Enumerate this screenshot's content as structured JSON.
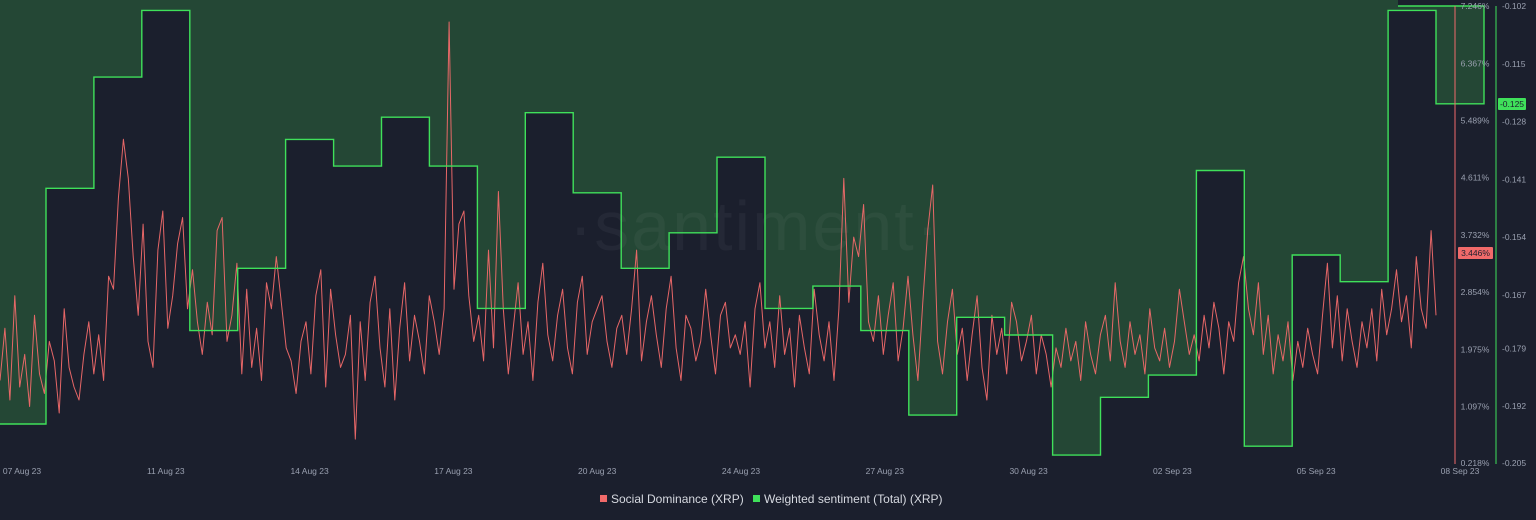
{
  "watermark": "·santiment·",
  "chart_data": {
    "type": "line",
    "x_ticks": [
      "07 Aug 23",
      "11 Aug 23",
      "14 Aug 23",
      "17 Aug 23",
      "20 Aug 23",
      "24 Aug 23",
      "27 Aug 23",
      "30 Aug 23",
      "02 Sep 23",
      "05 Sep 23",
      "08 Sep 23"
    ],
    "left_axis": {
      "ticks": [
        "7.246%",
        "6.367%",
        "5.489%",
        "4.611%",
        "3.732%",
        "2.854%",
        "1.975%",
        "1.097%",
        "0.218%"
      ],
      "range": [
        0.218,
        7.246
      ],
      "current_value_label": "3.446%"
    },
    "right_axis": {
      "ticks": [
        "-0.102",
        "-0.115",
        "-0.128",
        "-0.141",
        "-0.154",
        "-0.167",
        "-0.179",
        "-0.192",
        "-0.205"
      ],
      "range": [
        -0.205,
        -0.102
      ],
      "current_value_label": "-0.125"
    },
    "series": [
      {
        "name": "Social Dominance (XRP)",
        "axis": "left",
        "color": "#f16a6a",
        "values": [
          1.5,
          2.3,
          1.2,
          2.8,
          1.4,
          1.9,
          1.1,
          2.5,
          1.6,
          1.3,
          2.1,
          1.8,
          1.0,
          2.6,
          1.7,
          1.4,
          1.2,
          1.9,
          2.4,
          1.6,
          2.2,
          1.5,
          3.1,
          2.9,
          4.3,
          5.2,
          4.6,
          3.4,
          2.5,
          3.9,
          2.1,
          1.7,
          3.5,
          4.1,
          2.3,
          2.8,
          3.6,
          4.0,
          2.6,
          3.2,
          2.4,
          1.9,
          2.7,
          2.2,
          3.8,
          4.0,
          2.1,
          2.5,
          3.3,
          1.6,
          2.9,
          1.7,
          2.3,
          1.5,
          3.0,
          2.6,
          3.4,
          2.7,
          2.0,
          1.8,
          1.3,
          2.1,
          2.4,
          1.6,
          2.8,
          3.2,
          1.4,
          2.9,
          2.2,
          1.7,
          1.9,
          2.5,
          0.6,
          2.4,
          1.5,
          2.7,
          3.1,
          2.0,
          1.4,
          2.6,
          1.2,
          2.3,
          3.0,
          1.8,
          2.5,
          2.1,
          1.6,
          2.8,
          2.4,
          1.9,
          2.6,
          7.0,
          2.9,
          3.9,
          4.1,
          2.8,
          2.1,
          2.5,
          1.8,
          3.5,
          2.0,
          4.4,
          2.6,
          1.6,
          2.3,
          3.0,
          1.9,
          2.4,
          1.5,
          2.7,
          3.3,
          2.2,
          1.8,
          2.5,
          2.9,
          2.0,
          1.6,
          2.7,
          3.1,
          1.9,
          2.4,
          2.6,
          2.8,
          2.1,
          1.7,
          2.3,
          2.5,
          1.9,
          2.6,
          3.5,
          1.8,
          2.4,
          2.8,
          2.2,
          1.7,
          2.6,
          3.1,
          2.0,
          1.5,
          2.5,
          2.3,
          1.8,
          2.1,
          2.9,
          2.2,
          1.6,
          2.5,
          2.7,
          2.0,
          2.2,
          1.9,
          2.4,
          1.4,
          2.6,
          3.0,
          2.0,
          2.4,
          1.7,
          2.8,
          1.9,
          2.3,
          1.4,
          2.5,
          2.0,
          1.6,
          2.9,
          2.2,
          1.8,
          2.4,
          1.5,
          2.6,
          4.6,
          2.7,
          3.7,
          3.4,
          4.2,
          2.4,
          2.1,
          2.8,
          1.9,
          2.5,
          3.0,
          1.8,
          2.3,
          3.1,
          2.2,
          1.5,
          2.7,
          3.8,
          4.5,
          2.1,
          1.6,
          2.4,
          2.9,
          1.9,
          2.3,
          1.5,
          2.2,
          2.8,
          1.7,
          1.2,
          2.5,
          1.9,
          2.3,
          1.6,
          2.7,
          2.4,
          1.8,
          2.1,
          2.5,
          1.6,
          2.2,
          1.9,
          1.4,
          2.0,
          1.7,
          2.3,
          1.8,
          2.1,
          1.5,
          2.4,
          1.9,
          1.6,
          2.2,
          2.5,
          1.8,
          3.0,
          2.1,
          1.7,
          2.4,
          1.9,
          2.2,
          1.6,
          2.6,
          2.0,
          1.8,
          2.3,
          1.7,
          2.1,
          2.9,
          2.4,
          1.9,
          2.2,
          1.8,
          2.5,
          2.0,
          2.7,
          2.3,
          1.6,
          2.4,
          2.1,
          3.0,
          3.4,
          2.6,
          2.2,
          3.0,
          1.9,
          2.5,
          1.6,
          2.2,
          1.8,
          2.4,
          1.5,
          2.1,
          1.7,
          2.3,
          1.9,
          1.6,
          2.5,
          3.3,
          2.0,
          2.8,
          1.8,
          2.6,
          2.1,
          1.7,
          2.4,
          2.0,
          2.6,
          1.8,
          2.9,
          2.2,
          2.6,
          3.2,
          2.4,
          2.8,
          2.0,
          3.4,
          2.6,
          2.3,
          3.8,
          2.5
        ],
        "last_value": 3.446
      },
      {
        "name": "Weighted sentiment (Total) (XRP)",
        "axis": "right",
        "color": "#3fe05a",
        "steps": [
          {
            "start": "07 Aug 23",
            "value": -0.196
          },
          {
            "start": "08 Aug 23",
            "value": -0.143
          },
          {
            "start": "09 Aug 23",
            "value": -0.118
          },
          {
            "start": "10 Aug 23",
            "value": -0.103
          },
          {
            "start": "11 Aug 23",
            "value": -0.175
          },
          {
            "start": "12 Aug 23",
            "value": -0.161
          },
          {
            "start": "13 Aug 23",
            "value": -0.132
          },
          {
            "start": "14 Aug 23",
            "value": -0.138
          },
          {
            "start": "15 Aug 23",
            "value": -0.127
          },
          {
            "start": "16 Aug 23",
            "value": -0.138
          },
          {
            "start": "17 Aug 23",
            "value": -0.17
          },
          {
            "start": "18 Aug 23",
            "value": -0.126
          },
          {
            "start": "19 Aug 23",
            "value": -0.144
          },
          {
            "start": "20 Aug 23",
            "value": -0.161
          },
          {
            "start": "21 Aug 23",
            "value": -0.153
          },
          {
            "start": "22 Aug 23",
            "value": -0.136
          },
          {
            "start": "23 Aug 23",
            "value": -0.17
          },
          {
            "start": "24 Aug 23",
            "value": -0.165
          },
          {
            "start": "25 Aug 23",
            "value": -0.175
          },
          {
            "start": "26 Aug 23",
            "value": -0.194
          },
          {
            "start": "27 Aug 23",
            "value": -0.172
          },
          {
            "start": "28 Aug 23",
            "value": -0.176
          },
          {
            "start": "29 Aug 23",
            "value": -0.203
          },
          {
            "start": "30 Aug 23",
            "value": -0.19
          },
          {
            "start": "31 Aug 23",
            "value": -0.185
          },
          {
            "start": "01 Sep 23",
            "value": -0.139
          },
          {
            "start": "02 Sep 23",
            "value": -0.201
          },
          {
            "start": "03 Sep 23",
            "value": -0.158
          },
          {
            "start": "04 Sep 23",
            "value": -0.164
          },
          {
            "start": "05 Sep 23",
            "value": -0.103
          },
          {
            "start": "06 Sep 23",
            "value": -0.124
          },
          {
            "start": "07 Sep 23",
            "value": -0.102
          }
        ],
        "last_value": -0.125
      }
    ],
    "legend": [
      "Social Dominance (XRP)",
      "Weighted sentiment (Total) (XRP)"
    ],
    "legend_position": "bottom-center",
    "grid": false
  }
}
